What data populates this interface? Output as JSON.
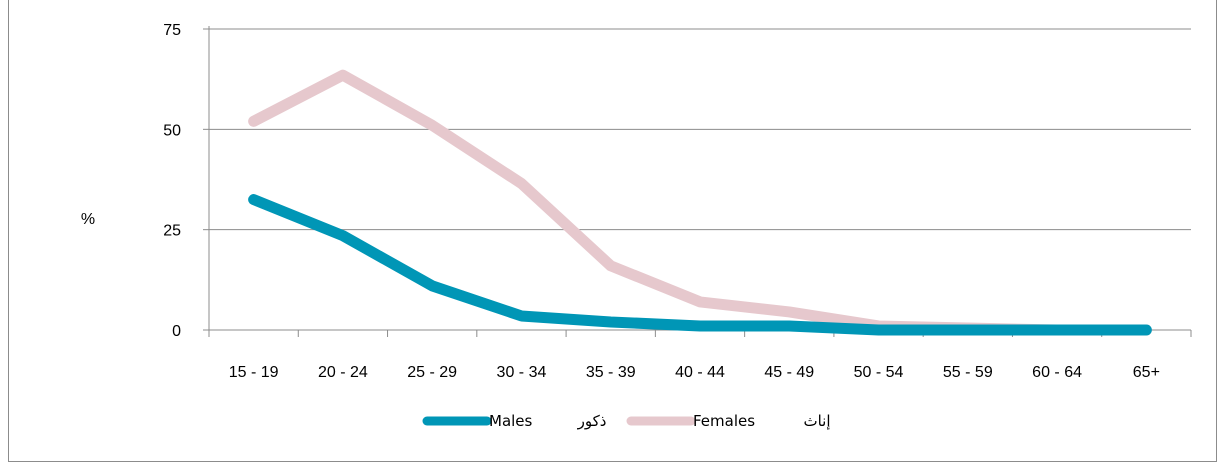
{
  "chart_data": {
    "type": "line",
    "categories": [
      "15 - 19",
      "20 - 24",
      "25 - 29",
      "30 - 34",
      "35 - 39",
      "40 - 44",
      "45 - 49",
      "50 - 54",
      "55 - 59",
      "60 - 64",
      "65+"
    ],
    "series": [
      {
        "name": "Males",
        "name_ar": "ذكور",
        "color": "#0096b6",
        "values": [
          32.5,
          23.5,
          11,
          3.5,
          2,
          1,
          1,
          0,
          0,
          0,
          0
        ]
      },
      {
        "name": "Females",
        "name_ar": "إناث",
        "color": "#e6c8cd",
        "values": [
          52,
          63.5,
          51,
          36.5,
          16,
          7,
          4.5,
          1,
          0.5,
          0,
          0
        ]
      }
    ],
    "ylabel": "%",
    "ylim": [
      0,
      75
    ],
    "yticks": [
      0,
      25,
      50,
      75
    ],
    "grid": true,
    "legend": "bottom-center"
  }
}
